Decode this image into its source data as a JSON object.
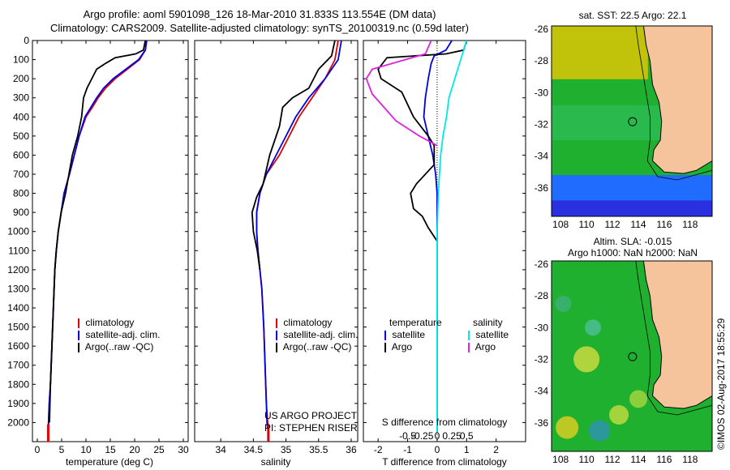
{
  "header": {
    "line1": "Argo profile: aoml 5901098_126 18-Mar-2010 31.833S 113.554E (DM data)",
    "line2": "Climatology: CARS2009. Satellite-adjusted climatology: synTS_20100319.nc (0.59d later)"
  },
  "credits": {
    "project": "US ARGO PROJECT",
    "pi": "PI: STEPHEN RISER",
    "imos": "©IMOS 02-Aug-2017 18:55:29"
  },
  "colors": {
    "climatology": "#e00000",
    "satellite": "#0000e0",
    "argo": "#000000",
    "s_satellite": "#00e8e8",
    "s_argo": "#e020e0",
    "land": "#f5c49c",
    "deep_blue": "#2040ff",
    "green": "#20b030",
    "yellow": "#f0e000"
  },
  "chart_data": [
    {
      "type": "line",
      "name": "temperature",
      "xlabel": "temperature (deg C)",
      "ylabel": "",
      "xlim": [
        -1,
        31
      ],
      "ylim": [
        2100,
        0
      ],
      "xticks": [
        "0",
        "5",
        "10",
        "15",
        "20",
        "25",
        "30"
      ],
      "xtick_values": [
        0,
        5,
        10,
        15,
        20,
        25,
        30
      ],
      "yticks": [
        "0",
        "100",
        "200",
        "300",
        "400",
        "500",
        "600",
        "700",
        "800",
        "900",
        "1000",
        "1100",
        "1200",
        "1300",
        "1400",
        "1500",
        "1600",
        "1700",
        "1800",
        "1900",
        "2000"
      ],
      "legend": [
        "climatology",
        "satellite-adj. clim.",
        "Argo(..raw -QC)"
      ],
      "series": [
        {
          "name": "climatology",
          "color_key": "climatology",
          "x": [
            22.5,
            22.2,
            21,
            18.5,
            16,
            14,
            12.5,
            11.3,
            10,
            8.6,
            7.6,
            6.6,
            5.5,
            4.9,
            4.3,
            3.9,
            3.6,
            3.3,
            3.0,
            2.7,
            2.45,
            2.3,
            2.25
          ],
          "y": [
            0,
            50,
            100,
            150,
            200,
            250,
            300,
            350,
            400,
            500,
            600,
            700,
            800,
            900,
            1000,
            1100,
            1200,
            1400,
            1600,
            1800,
            1900,
            2000,
            2050
          ]
        },
        {
          "name": "satellite-adj. clim.",
          "color_key": "satellite",
          "x": [
            22.4,
            22.2,
            20.8,
            18.2,
            15.6,
            13.6,
            12.2,
            11.0,
            9.8,
            8.6,
            7.6,
            6.6,
            5.5,
            4.9,
            4.3,
            3.9,
            3.6,
            3.3,
            3.0,
            2.7,
            2.45,
            2.3,
            2.25
          ],
          "y": [
            0,
            50,
            100,
            150,
            200,
            250,
            300,
            350,
            400,
            500,
            600,
            700,
            800,
            900,
            1000,
            1100,
            1200,
            1400,
            1600,
            1800,
            1900,
            2000,
            2050
          ]
        },
        {
          "name": "Argo(..raw -QC)",
          "color_key": "argo",
          "x": [
            22.2,
            21.8,
            20.2,
            16,
            14,
            12.2,
            11.2,
            10.2,
            9.5,
            9.1,
            8.3,
            7.2,
            5.8,
            4.9,
            4.3,
            3.9,
            3.6,
            3.3,
            3.0,
            2.7,
            2.5
          ],
          "y": [
            0,
            50,
            70,
            90,
            120,
            150,
            200,
            250,
            300,
            400,
            500,
            600,
            800,
            900,
            1000,
            1100,
            1200,
            1400,
            1600,
            1800,
            2000
          ]
        }
      ]
    },
    {
      "type": "line",
      "name": "salinity",
      "xlabel": "salinity",
      "ylabel": "",
      "xlim": [
        33.6,
        36.1
      ],
      "ylim": [
        2100,
        0
      ],
      "xticks": [
        "34",
        "34.5",
        "35",
        "35.5",
        "36"
      ],
      "xtick_values": [
        34,
        34.5,
        35,
        35.5,
        36
      ],
      "legend": [
        "climatology",
        "satellite-adj. clim.",
        "Argo(..raw -QC)"
      ],
      "series": [
        {
          "name": "climatology",
          "color_key": "climatology",
          "x": [
            35.8,
            35.75,
            35.6,
            35.4,
            35.2,
            35.05,
            34.9,
            34.7,
            34.6,
            34.55,
            34.55,
            34.57,
            34.6,
            34.63,
            34.66,
            34.68,
            34.7,
            34.72,
            34.73
          ],
          "y": [
            0,
            100,
            200,
            300,
            400,
            500,
            600,
            700,
            800,
            900,
            1000,
            1100,
            1200,
            1300,
            1500,
            1700,
            1900,
            2000,
            2050
          ]
        },
        {
          "name": "satellite-adj. clim.",
          "color_key": "satellite",
          "x": [
            35.85,
            35.8,
            35.6,
            35.35,
            35.15,
            35.0,
            34.85,
            34.7,
            34.6,
            34.55,
            34.55,
            34.57,
            34.6,
            34.63,
            34.66,
            34.68,
            34.7,
            34.71,
            34.72
          ],
          "y": [
            0,
            100,
            200,
            300,
            400,
            500,
            600,
            700,
            800,
            900,
            1000,
            1100,
            1200,
            1300,
            1500,
            1700,
            1900,
            2000,
            2030
          ]
        },
        {
          "name": "Argo(..raw -QC)",
          "color_key": "argo",
          "x": [
            35.75,
            35.7,
            35.5,
            35.35,
            35.1,
            34.95,
            34.9,
            34.75,
            34.65,
            34.55,
            34.48,
            34.5,
            34.56,
            34.6
          ],
          "y": [
            0,
            80,
            150,
            250,
            300,
            350,
            450,
            600,
            750,
            820,
            900,
            1000,
            1100,
            1200
          ]
        }
      ]
    },
    {
      "type": "line",
      "name": "differences",
      "xlabel": "T difference from climatology",
      "x2label": "S difference from climatology",
      "xlim": [
        -2.5,
        3
      ],
      "ylim": [
        2100,
        0
      ],
      "xticks": [
        "-2",
        "-1",
        "0",
        "1",
        "2"
      ],
      "xtick_values": [
        -2,
        -1,
        0,
        1,
        2
      ],
      "x2ticks": [
        "-0.5",
        "-0.25",
        "0",
        "0.25",
        "0.5"
      ],
      "legend_temperature": [
        "temperature",
        "satellite",
        "Argo"
      ],
      "legend_salinity": [
        "salinity",
        "satellite",
        "Argo"
      ],
      "series": [
        {
          "name": "temperature satellite",
          "color_key": "satellite",
          "x": [
            0.5,
            0.3,
            -0.1,
            -0.2,
            -0.3,
            -0.4,
            -0.45,
            -0.3,
            -0.15,
            -0.05,
            0,
            0,
            0
          ],
          "y": [
            0,
            50,
            80,
            120,
            200,
            300,
            400,
            500,
            600,
            700,
            800,
            1000,
            2050
          ]
        },
        {
          "name": "temperature Argo",
          "color_key": "argo",
          "x": [
            1.0,
            0.9,
            0.3,
            -1.7,
            -2.0,
            -1.9,
            -1.2,
            -0.8,
            -0.3,
            -0.1,
            -0.1,
            -0.7,
            -0.9,
            -0.8,
            -0.5,
            -0.3,
            0
          ],
          "y": [
            0,
            50,
            70,
            90,
            150,
            200,
            270,
            400,
            500,
            550,
            650,
            750,
            800,
            880,
            920,
            980,
            1050
          ]
        },
        {
          "name": "salinity satellite",
          "color_key": "s_satellite",
          "x": [
            0.25,
            0.2,
            0.15,
            0.1,
            0.08,
            0.05,
            0.03,
            0.02,
            0.01,
            0.005,
            0,
            0
          ],
          "y": [
            0,
            100,
            200,
            300,
            400,
            500,
            600,
            700,
            800,
            900,
            1000,
            2050
          ]
        },
        {
          "name": "salinity Argo",
          "color_key": "s_argo",
          "x": [
            -0.05,
            -0.1,
            -0.55,
            -0.6,
            -0.55,
            -0.45,
            -0.35,
            -0.15,
            0
          ],
          "y": [
            0,
            70,
            150,
            200,
            280,
            350,
            420,
            500,
            550
          ]
        }
      ]
    }
  ],
  "maps": [
    {
      "title": "sat. SST: 22.5 Argo: 22.1",
      "subtitle": "",
      "xticks": [
        "108",
        "110",
        "112",
        "114",
        "116",
        "118"
      ],
      "yticks": [
        "-26",
        "-28",
        "-30",
        "-32",
        "-34",
        "-36"
      ],
      "float_lon": 113.554,
      "float_lat": -31.833
    },
    {
      "title": "Altim. SLA: -0.015",
      "subtitle": "Argo h1000: NaN h2000: NaN",
      "xticks": [
        "108",
        "110",
        "112",
        "114",
        "116",
        "118"
      ],
      "yticks": [
        "-26",
        "-28",
        "-30",
        "-32",
        "-34",
        "-36"
      ],
      "float_lon": 113.554,
      "float_lat": -31.833
    }
  ]
}
